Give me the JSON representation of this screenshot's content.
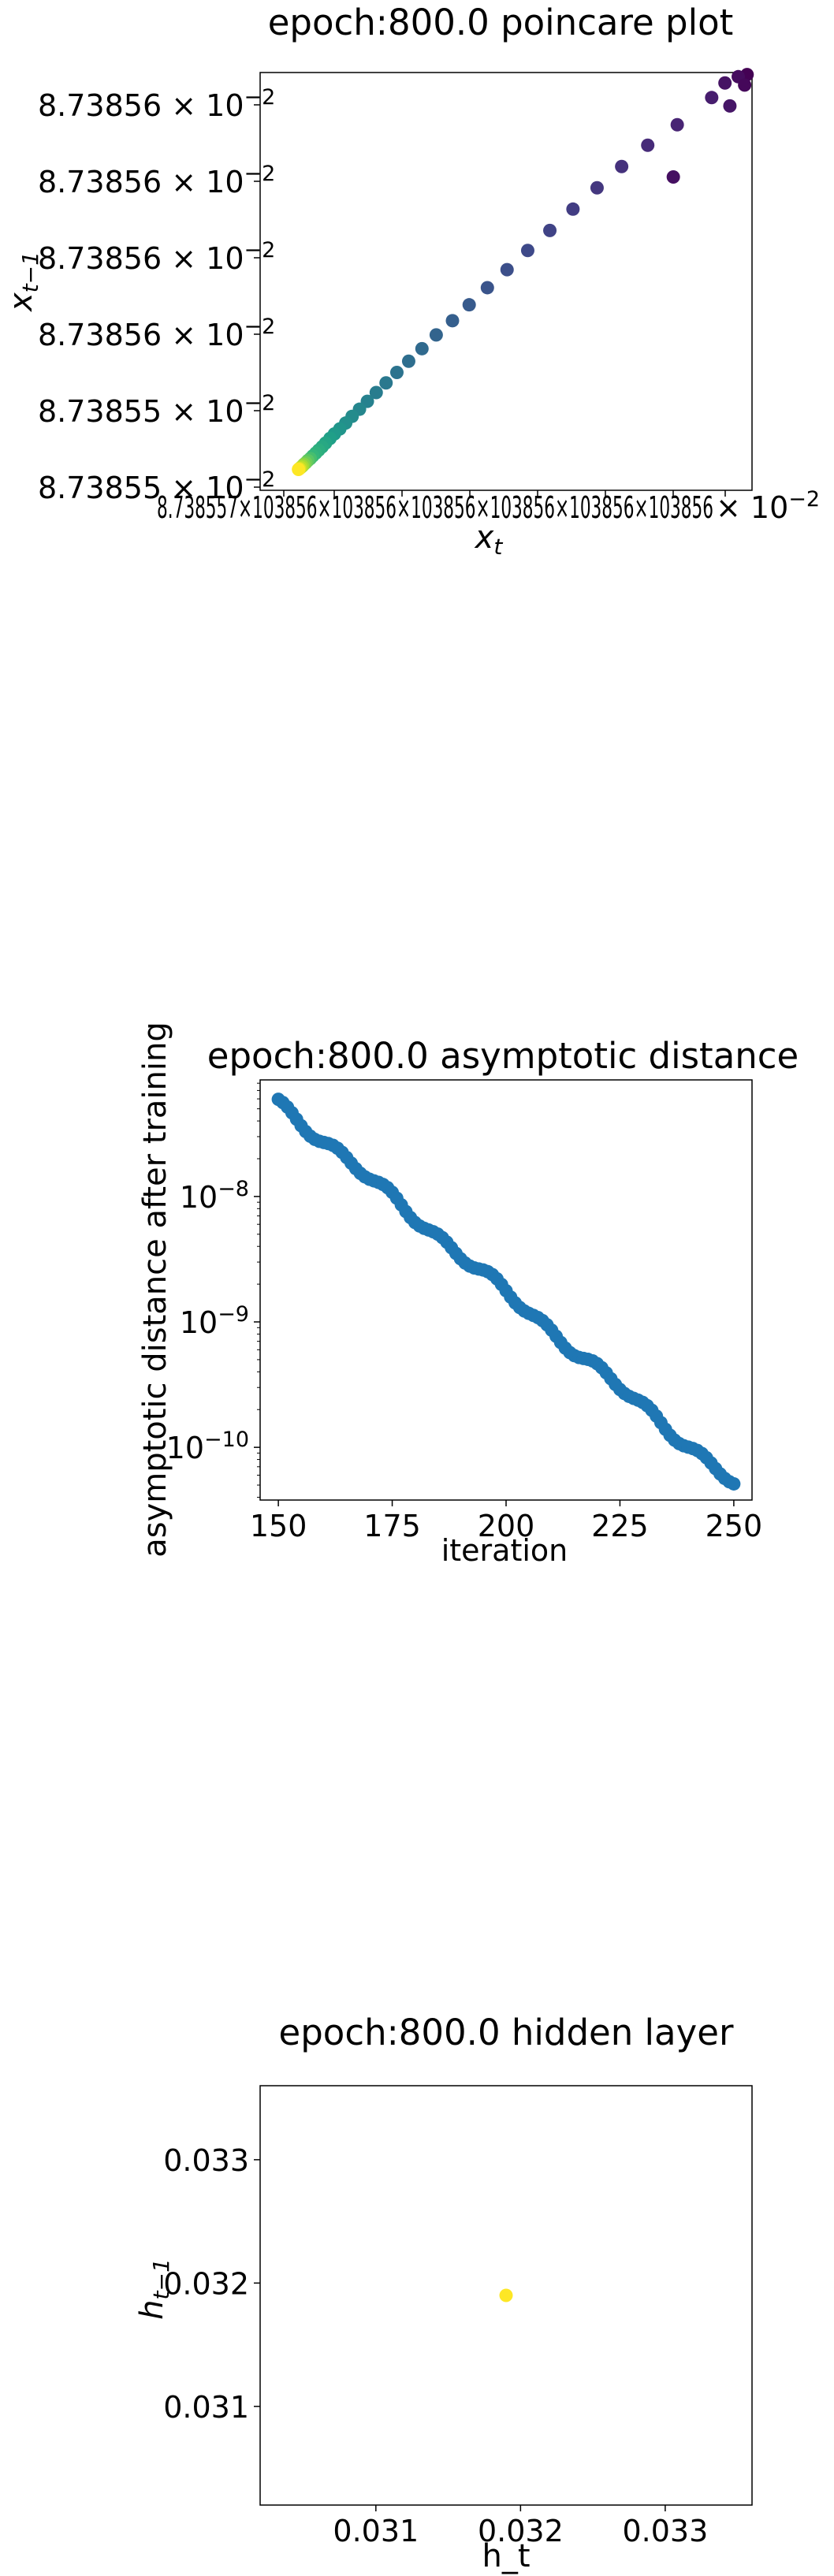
{
  "chart_data": [
    {
      "type": "scatter",
      "title": "epoch:800.0 poincare plot",
      "xlabel_main": "x",
      "xlabel_sub": "t",
      "ylabel_main": "x",
      "ylabel_sub": "t−1",
      "y_ticks": [
        {
          "mantissa": "8.73855",
          "exp": "−2"
        },
        {
          "mantissa": "8.73855",
          "exp": "−2"
        },
        {
          "mantissa": "8.73856",
          "exp": "−2"
        },
        {
          "mantissa": "8.73856",
          "exp": "−2"
        },
        {
          "mantissa": "8.73856",
          "exp": "−2"
        },
        {
          "mantissa": "8.73856",
          "exp": "−2"
        }
      ],
      "x_tick_text": "8.738557×103856×103856×103856×103856×103856×103856",
      "x_tick_exp_end": "× 10",
      "x_tick_exp_sup": "−2",
      "colormap": "viridis",
      "points": [
        [
          0.99,
          0.995,
          0.0
        ],
        [
          0.972,
          0.99,
          0.03
        ],
        [
          0.945,
          0.975,
          0.05
        ],
        [
          0.985,
          0.97,
          0.02
        ],
        [
          0.955,
          0.92,
          0.06
        ],
        [
          0.918,
          0.94,
          0.08
        ],
        [
          0.84,
          0.75,
          0.04
        ],
        [
          0.848,
          0.875,
          0.1
        ],
        [
          0.788,
          0.826,
          0.12
        ],
        [
          0.735,
          0.775,
          0.14
        ],
        [
          0.685,
          0.724,
          0.16
        ],
        [
          0.636,
          0.673,
          0.18
        ],
        [
          0.589,
          0.622,
          0.2
        ],
        [
          0.544,
          0.574,
          0.22
        ],
        [
          0.502,
          0.528,
          0.24
        ],
        [
          0.462,
          0.485,
          0.26
        ],
        [
          0.425,
          0.444,
          0.28
        ],
        [
          0.391,
          0.406,
          0.3
        ],
        [
          0.358,
          0.372,
          0.32
        ],
        [
          0.329,
          0.339,
          0.34
        ],
        [
          0.302,
          0.309,
          0.36
        ],
        [
          0.278,
          0.282,
          0.38
        ],
        [
          0.256,
          0.257,
          0.4
        ],
        [
          0.236,
          0.234,
          0.42
        ],
        [
          0.218,
          0.213,
          0.44
        ],
        [
          0.202,
          0.194,
          0.46
        ],
        [
          0.187,
          0.177,
          0.48
        ],
        [
          0.174,
          0.161,
          0.5
        ],
        [
          0.162,
          0.147,
          0.52
        ],
        [
          0.151,
          0.135,
          0.54
        ],
        [
          0.142,
          0.124,
          0.56
        ],
        [
          0.133,
          0.113,
          0.58
        ],
        [
          0.126,
          0.104,
          0.6
        ],
        [
          0.119,
          0.096,
          0.62
        ],
        [
          0.113,
          0.089,
          0.64
        ],
        [
          0.107,
          0.082,
          0.66
        ],
        [
          0.102,
          0.076,
          0.7
        ],
        [
          0.097,
          0.071,
          0.74
        ],
        [
          0.093,
          0.066,
          0.78
        ],
        [
          0.089,
          0.062,
          0.82
        ],
        [
          0.086,
          0.058,
          0.86
        ],
        [
          0.083,
          0.055,
          0.9
        ],
        [
          0.08,
          0.052,
          0.95
        ],
        [
          0.078,
          0.05,
          1.0
        ]
      ]
    },
    {
      "type": "scatter",
      "title": "epoch:800.0 asymptotic distance",
      "xlabel": "iteration",
      "ylabel": "asymptotic distance after training",
      "xlim": [
        146,
        254
      ],
      "x_ticks": [
        150,
        175,
        200,
        225,
        250
      ],
      "y_log": true,
      "ylim": [
        3.8e-11,
        8.5e-08
      ],
      "y_ticks": [
        {
          "value": 1e-10,
          "base": "10",
          "exp": "−10"
        },
        {
          "value": 1e-09,
          "base": "10",
          "exp": "−9"
        },
        {
          "value": 1e-08,
          "base": "10",
          "exp": "−8"
        }
      ],
      "color": "#1f77b4",
      "series": [
        {
          "x_start": 150,
          "x_end": 250,
          "y_start": 5.6e-08,
          "y_end": 5.2e-11
        }
      ]
    },
    {
      "type": "scatter",
      "title": "epoch:800.0 hidden layer",
      "xlabel": "h_t",
      "ylabel_main": "h",
      "ylabel_sub": "t−1",
      "xlim": [
        0.0302,
        0.0336
      ],
      "ylim": [
        0.0302,
        0.0336
      ],
      "x_ticks": [
        "0.031",
        "0.032",
        "0.033"
      ],
      "y_ticks": [
        "0.031",
        "0.032",
        "0.033"
      ],
      "point": {
        "x": 0.0319,
        "y": 0.0319
      },
      "color": "#fde725"
    }
  ]
}
